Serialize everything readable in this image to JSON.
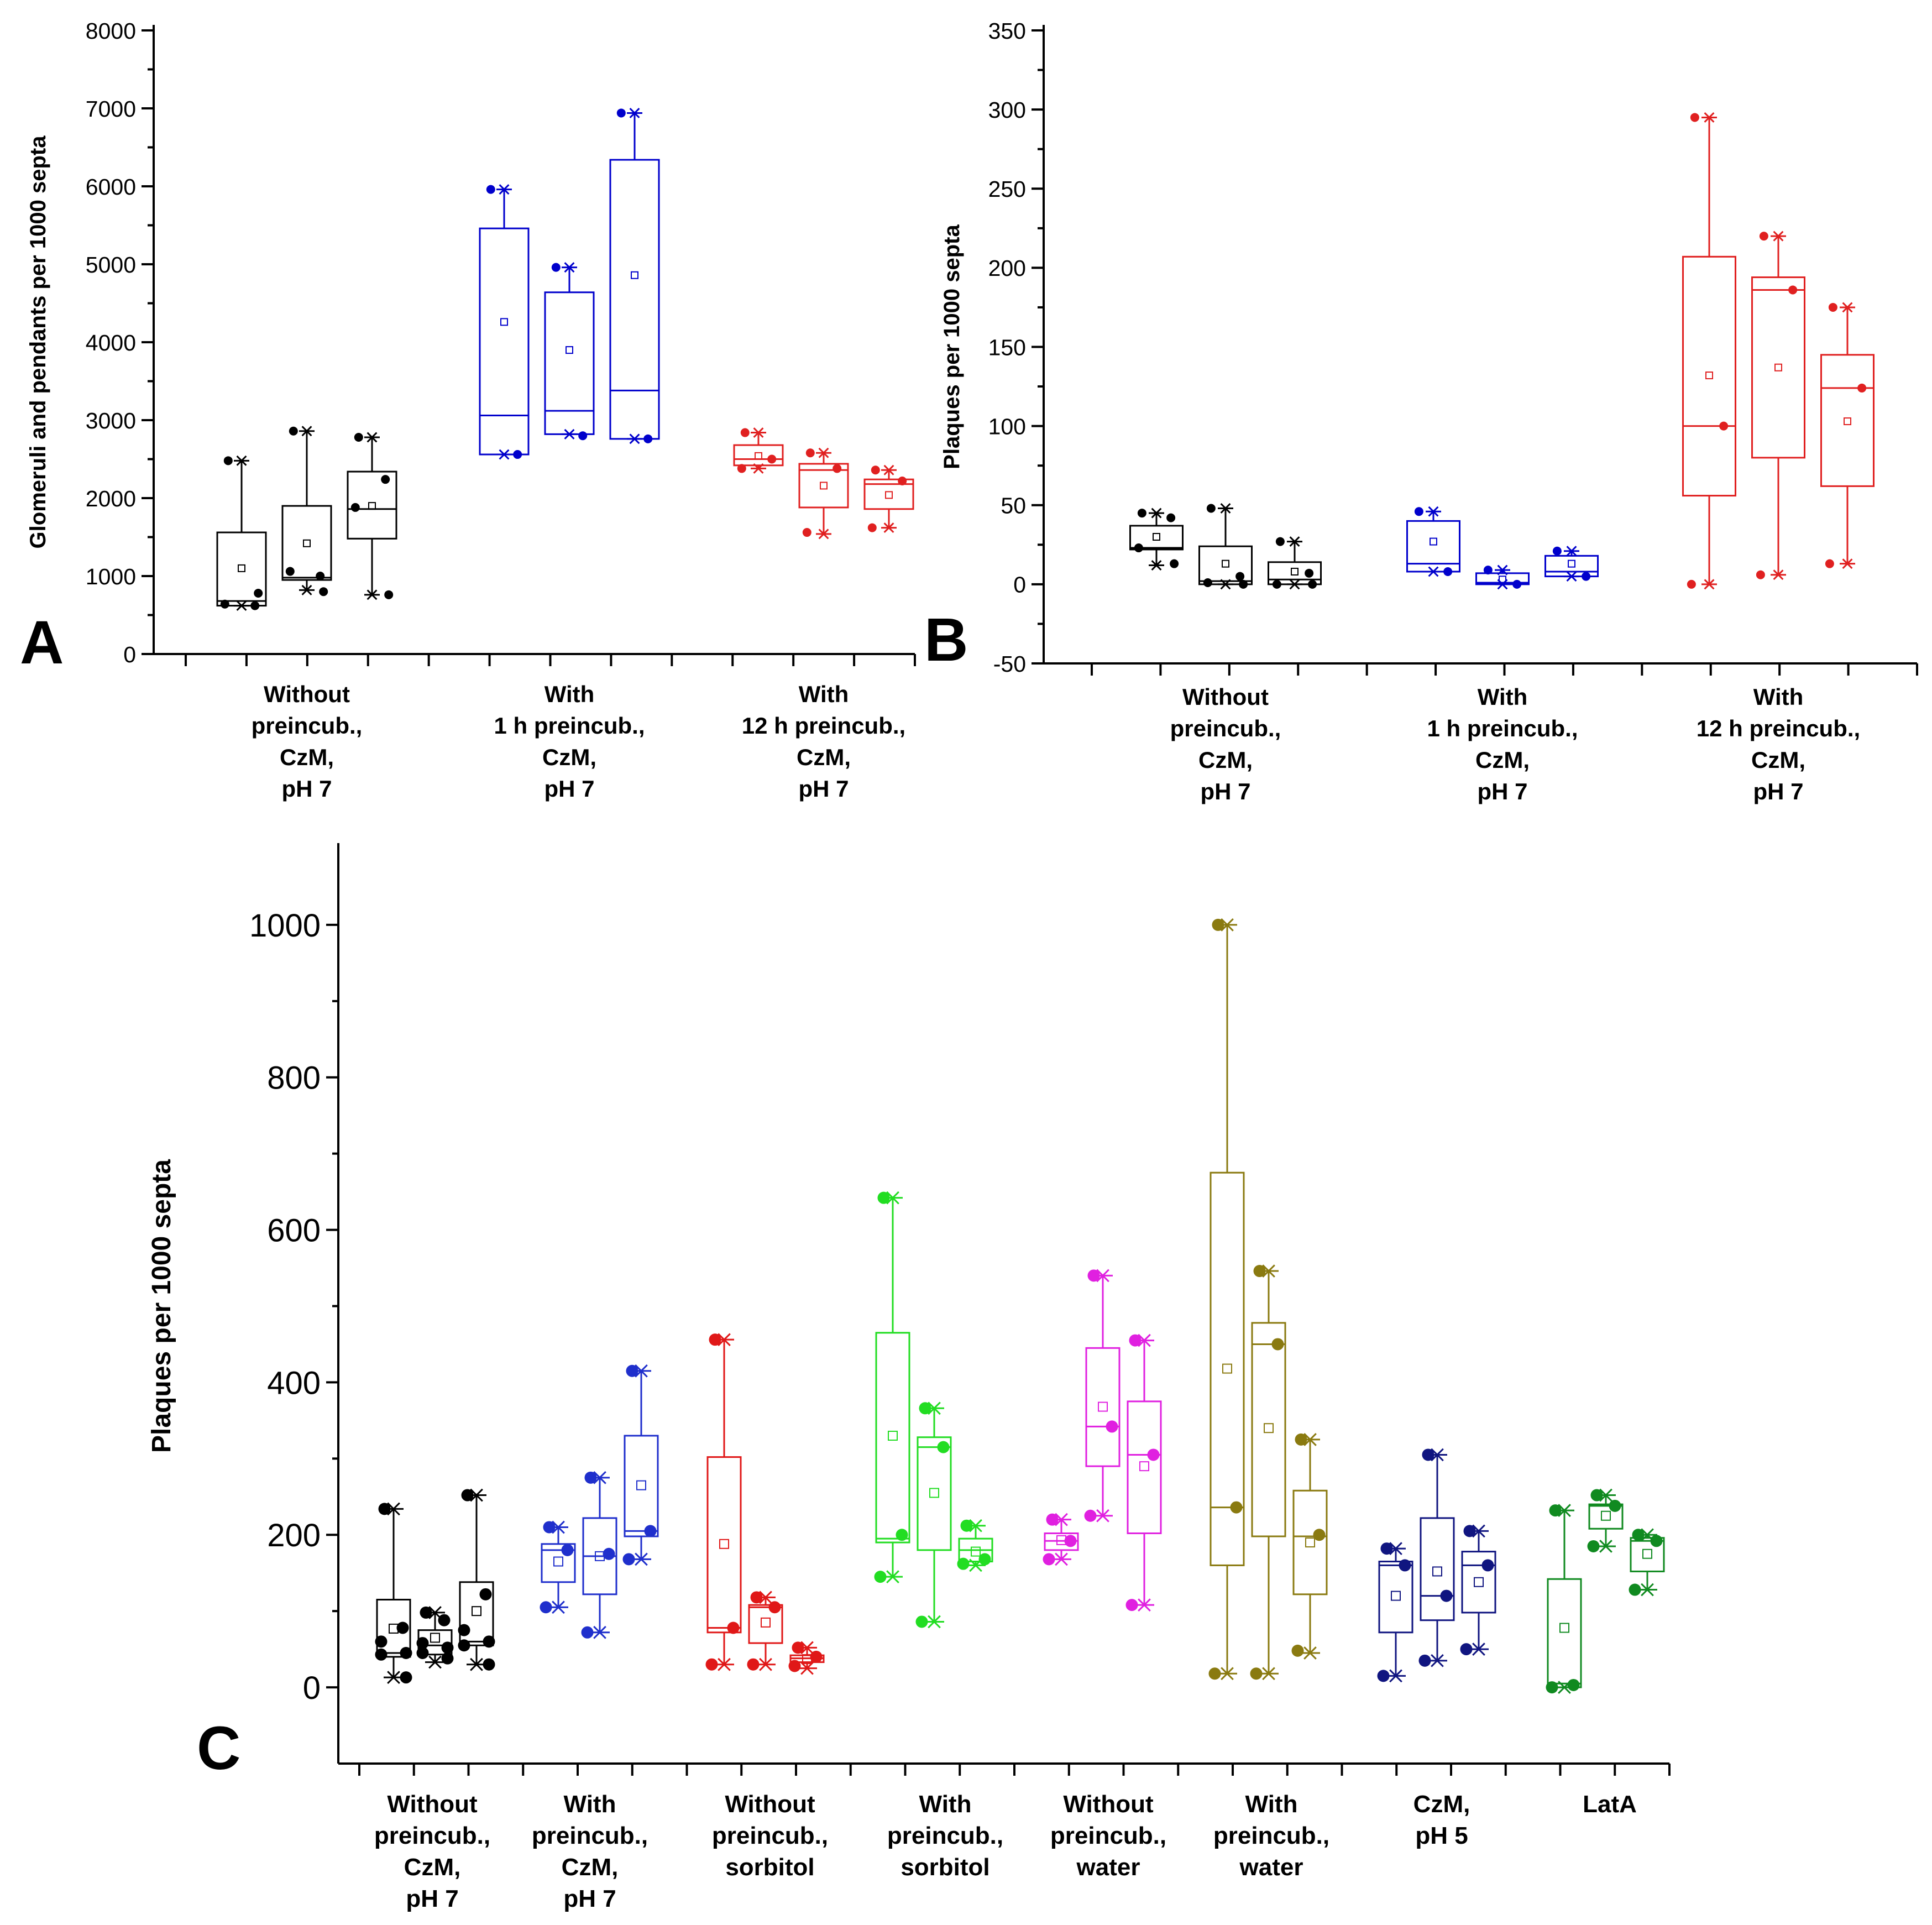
{
  "chart_data": [
    {
      "panel": "A",
      "type": "box",
      "ylabel": "Glomeruli and pendants per 1000 septa",
      "ylim": [
        0,
        8000
      ],
      "yticks": [
        0,
        1000,
        2000,
        3000,
        4000,
        5000,
        6000,
        7000,
        8000
      ],
      "groups": [
        {
          "label": [
            "Without",
            "preincub.,",
            "CzM,",
            "pH 7"
          ],
          "color": "#000000",
          "boxes": [
            {
              "min": 620,
              "q1": 620,
              "median": 680,
              "q3": 1560,
              "max": 2480,
              "mean": 1100,
              "points": [
                2480,
                620,
                640,
                780
              ]
            },
            {
              "min": 820,
              "q1": 950,
              "median": 980,
              "q3": 1900,
              "max": 2860,
              "mean": 1420,
              "points": [
                2860,
                1000,
                1060,
                800
              ]
            },
            {
              "min": 760,
              "q1": 1480,
              "median": 1860,
              "q3": 2340,
              "max": 2780,
              "mean": 1900,
              "points": [
                2780,
                2240,
                1880,
                760
              ]
            }
          ]
        },
        {
          "label": [
            "With",
            "1 h preincub.,",
            "CzM,",
            "pH 7"
          ],
          "color": "#0000cc",
          "boxes": [
            {
              "min": 2560,
              "q1": 2560,
              "median": 3060,
              "q3": 5460,
              "max": 5960,
              "mean": 4260,
              "points": [
                5960,
                2560
              ]
            },
            {
              "min": 2820,
              "q1": 2820,
              "median": 3120,
              "q3": 4640,
              "max": 4960,
              "mean": 3900,
              "points": [
                4960,
                2800
              ]
            },
            {
              "min": 2760,
              "q1": 2760,
              "median": 3380,
              "q3": 6340,
              "max": 6940,
              "mean": 4860,
              "points": [
                6940,
                2760
              ]
            }
          ]
        },
        {
          "label": [
            "With",
            "12 h preincub.,",
            "CzM,",
            "pH 7"
          ],
          "color": "#e02020",
          "boxes": [
            {
              "min": 2380,
              "q1": 2420,
              "median": 2500,
              "q3": 2680,
              "max": 2840,
              "mean": 2540,
              "points": [
                2840,
                2500,
                2380
              ]
            },
            {
              "min": 1540,
              "q1": 1880,
              "median": 2360,
              "q3": 2440,
              "max": 2580,
              "mean": 2160,
              "points": [
                2580,
                2380,
                1560
              ]
            },
            {
              "min": 1620,
              "q1": 1860,
              "median": 2180,
              "q3": 2240,
              "max": 2360,
              "mean": 2040,
              "points": [
                2360,
                2220,
                1620
              ]
            }
          ]
        }
      ]
    },
    {
      "panel": "B",
      "type": "box",
      "ylabel": "Plaques per 1000 septa",
      "ylim": [
        -50,
        350
      ],
      "yticks": [
        -50,
        0,
        50,
        100,
        150,
        200,
        250,
        300,
        350
      ],
      "groups": [
        {
          "label": [
            "Without",
            "preincub.,",
            "CzM,",
            "pH 7"
          ],
          "color": "#000000",
          "boxes": [
            {
              "min": 12,
              "q1": 22,
              "median": 23,
              "q3": 37,
              "max": 45,
              "mean": 30,
              "points": [
                45,
                42,
                23,
                13
              ]
            },
            {
              "min": 0,
              "q1": 0,
              "median": 2,
              "q3": 24,
              "max": 48,
              "mean": 13,
              "points": [
                48,
                5,
                1,
                0
              ]
            },
            {
              "min": 0,
              "q1": 0,
              "median": 3,
              "q3": 14,
              "max": 27,
              "mean": 8,
              "points": [
                27,
                7,
                0,
                0
              ]
            }
          ]
        },
        {
          "label": [
            "With",
            "1 h preincub.,",
            "CzM,",
            "pH 7"
          ],
          "color": "#0000cc",
          "boxes": [
            {
              "min": 8,
              "q1": 8,
              "median": 13,
              "q3": 40,
              "max": 46,
              "mean": 27,
              "points": [
                46,
                8
              ]
            },
            {
              "min": 0,
              "q1": 0,
              "median": 1,
              "q3": 7,
              "max": 9,
              "mean": 3,
              "points": [
                9,
                0
              ]
            },
            {
              "min": 5,
              "q1": 5,
              "median": 8,
              "q3": 18,
              "max": 21,
              "mean": 13,
              "points": [
                21,
                5
              ]
            }
          ]
        },
        {
          "label": [
            "With",
            "12 h preincub.,",
            "CzM,",
            "pH 7"
          ],
          "color": "#e02020",
          "boxes": [
            {
              "min": 0,
              "q1": 56,
              "median": 100,
              "q3": 207,
              "max": 295,
              "mean": 132,
              "points": [
                295,
                100,
                0
              ]
            },
            {
              "min": 6,
              "q1": 80,
              "median": 186,
              "q3": 194,
              "max": 220,
              "mean": 137,
              "points": [
                220,
                186,
                6
              ]
            },
            {
              "min": 13,
              "q1": 62,
              "median": 124,
              "q3": 145,
              "max": 175,
              "mean": 103,
              "points": [
                175,
                124,
                13
              ]
            }
          ]
        }
      ]
    },
    {
      "panel": "C",
      "type": "box",
      "ylabel": "Plaques per 1000 septa",
      "ylim": [
        -100,
        1100
      ],
      "yticks": [
        0,
        200,
        400,
        600,
        800,
        1000
      ],
      "groups": [
        {
          "label": [
            "Without",
            "preincub.,",
            "CzM,",
            "pH 7"
          ],
          "color": "#000000",
          "boxes": [
            {
              "min": 13,
              "q1": 40,
              "median": 45,
              "q3": 115,
              "max": 234,
              "mean": 77,
              "points": [
                234,
                78,
                60,
                45,
                43,
                13
              ]
            },
            {
              "min": 33,
              "q1": 43,
              "median": 55,
              "q3": 75,
              "max": 98,
              "mean": 65,
              "points": [
                98,
                88,
                58,
                52,
                45,
                38
              ]
            },
            {
              "min": 30,
              "q1": 55,
              "median": 60,
              "q3": 138,
              "max": 252,
              "mean": 100,
              "points": [
                252,
                122,
                75,
                60,
                55,
                30
              ]
            }
          ]
        },
        {
          "label": [
            "With",
            "preincub.,",
            "CzM,",
            "pH 7"
          ],
          "color": "#1f2fcc",
          "boxes": [
            {
              "min": 105,
              "q1": 138,
              "median": 180,
              "q3": 188,
              "max": 210,
              "mean": 165,
              "points": [
                210,
                180,
                105
              ]
            },
            {
              "min": 72,
              "q1": 122,
              "median": 172,
              "q3": 222,
              "max": 275,
              "mean": 172,
              "points": [
                275,
                175,
                72
              ]
            },
            {
              "min": 168,
              "q1": 198,
              "median": 205,
              "q3": 330,
              "max": 415,
              "mean": 265,
              "points": [
                415,
                205,
                168
              ]
            }
          ]
        },
        {
          "label": [
            "Without",
            "preincub.,",
            "sorbitol"
          ],
          "color": "#e01818",
          "boxes": [
            {
              "min": 30,
              "q1": 72,
              "median": 78,
              "q3": 302,
              "max": 456,
              "mean": 188,
              "points": [
                456,
                78,
                30
              ]
            },
            {
              "min": 30,
              "q1": 58,
              "median": 105,
              "q3": 108,
              "max": 118,
              "mean": 85,
              "points": [
                118,
                105,
                30
              ]
            },
            {
              "min": 25,
              "q1": 33,
              "median": 38,
              "q3": 42,
              "max": 52,
              "mean": 37,
              "points": [
                52,
                40,
                28
              ]
            }
          ]
        },
        {
          "label": [
            "With",
            "preincub.,",
            "sorbitol"
          ],
          "color": "#22dd22",
          "boxes": [
            {
              "min": 145,
              "q1": 190,
              "median": 195,
              "q3": 465,
              "max": 642,
              "mean": 330,
              "points": [
                642,
                200,
                145
              ]
            },
            {
              "min": 86,
              "q1": 180,
              "median": 315,
              "q3": 328,
              "max": 366,
              "mean": 255,
              "points": [
                366,
                315,
                86
              ]
            },
            {
              "min": 160,
              "q1": 165,
              "median": 180,
              "q3": 195,
              "max": 212,
              "mean": 178,
              "points": [
                212,
                168,
                162
              ]
            }
          ]
        },
        {
          "label": [
            "Without",
            "preincub.,",
            "water"
          ],
          "color": "#e020e0",
          "boxes": [
            {
              "min": 168,
              "q1": 180,
              "median": 192,
              "q3": 202,
              "max": 220,
              "mean": 193,
              "points": [
                220,
                192,
                168
              ]
            },
            {
              "min": 225,
              "q1": 290,
              "median": 342,
              "q3": 445,
              "max": 540,
              "mean": 368,
              "points": [
                540,
                342,
                225
              ]
            },
            {
              "min": 108,
              "q1": 202,
              "median": 305,
              "q3": 375,
              "max": 455,
              "mean": 290,
              "points": [
                455,
                305,
                108
              ]
            }
          ]
        },
        {
          "label": [
            "With",
            "preincub.,",
            "water"
          ],
          "color": "#8a7a10",
          "boxes": [
            {
              "min": 18,
              "q1": 160,
              "median": 236,
              "q3": 675,
              "max": 1000,
              "mean": 418,
              "points": [
                1000,
                236,
                18
              ]
            },
            {
              "min": 18,
              "q1": 198,
              "median": 450,
              "q3": 478,
              "max": 546,
              "mean": 340,
              "points": [
                546,
                450,
                18
              ]
            },
            {
              "min": 45,
              "q1": 122,
              "median": 198,
              "q3": 258,
              "max": 325,
              "mean": 190,
              "points": [
                325,
                200,
                48
              ]
            }
          ]
        },
        {
          "label": [
            "CzM,",
            "pH 5"
          ],
          "color": "#101580",
          "boxes": [
            {
              "min": 15,
              "q1": 72,
              "median": 160,
              "q3": 165,
              "max": 182,
              "mean": 120,
              "points": [
                182,
                160,
                15
              ]
            },
            {
              "min": 35,
              "q1": 88,
              "median": 120,
              "q3": 222,
              "max": 305,
              "mean": 152,
              "points": [
                305,
                120,
                35
              ]
            },
            {
              "min": 50,
              "q1": 98,
              "median": 160,
              "q3": 178,
              "max": 205,
              "mean": 138,
              "points": [
                205,
                160,
                50
              ]
            }
          ]
        },
        {
          "label": [
            "LatA"
          ],
          "color": "#108a20",
          "boxes": [
            {
              "min": 0,
              "q1": 0,
              "median": 5,
              "q3": 142,
              "max": 232,
              "mean": 78,
              "points": [
                232,
                3,
                0
              ]
            },
            {
              "min": 185,
              "q1": 208,
              "median": 238,
              "q3": 240,
              "max": 252,
              "mean": 225,
              "points": [
                252,
                238,
                185
              ]
            },
            {
              "min": 128,
              "q1": 152,
              "median": 192,
              "q3": 196,
              "max": 200,
              "mean": 175,
              "points": [
                200,
                192,
                128
              ]
            }
          ]
        }
      ]
    }
  ]
}
